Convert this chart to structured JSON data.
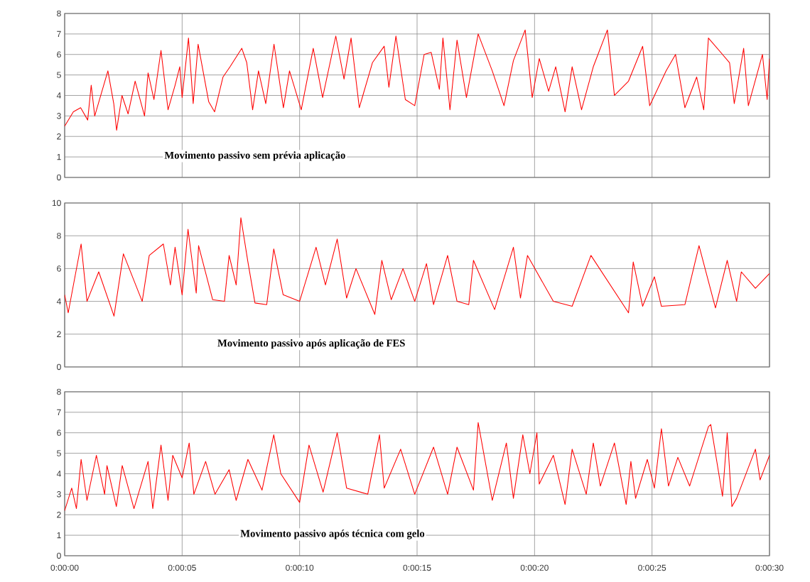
{
  "chart_data": [
    {
      "type": "line",
      "color": "#ff0000",
      "grid": true,
      "tick_labels": "y",
      "xlim": [
        0,
        30
      ],
      "ylim": [
        0,
        8
      ],
      "xticks": [
        {
          "value": 0,
          "label": null
        },
        {
          "value": 5,
          "label": null
        },
        {
          "value": 10,
          "label": null
        },
        {
          "value": 15,
          "label": null
        },
        {
          "value": 20,
          "label": null
        },
        {
          "value": 25,
          "label": null
        },
        {
          "value": 30,
          "label": null
        }
      ],
      "yticks": [
        0,
        1,
        2,
        3,
        4,
        5,
        6,
        7,
        8
      ],
      "annotations": [
        "Movimento passivo sem prévia aplicação"
      ],
      "x": [
        0,
        0.37,
        0.68,
        0.98,
        1.13,
        1.28,
        1.84,
        2.09,
        2.21,
        2.44,
        2.7,
        3.0,
        3.4,
        3.55,
        3.8,
        4.1,
        4.4,
        4.7,
        4.9,
        5.0,
        5.27,
        5.47,
        5.68,
        6.13,
        6.38,
        6.74,
        7.04,
        7.54,
        7.75,
        8.0,
        8.25,
        8.56,
        8.91,
        9.31,
        9.57,
        10.07,
        10.58,
        10.98,
        11.54,
        11.89,
        12.19,
        12.54,
        13.1,
        13.6,
        13.8,
        14.1,
        14.5,
        14.9,
        15.3,
        15.6,
        15.95,
        16.1,
        16.4,
        16.7,
        17.1,
        17.6,
        18.2,
        18.7,
        19.1,
        19.6,
        19.9,
        20.2,
        20.6,
        20.9,
        21.3,
        21.6,
        22.0,
        22.5,
        23.1,
        23.4,
        24.0,
        24.6,
        24.9,
        25.6,
        26.0,
        26.4,
        26.9,
        27.2,
        27.4,
        28.3,
        28.5,
        28.9,
        29.1,
        29.7,
        29.9,
        30
      ],
      "values": [
        2.5,
        3.2,
        3.4,
        2.8,
        4.5,
        3.0,
        5.2,
        3.6,
        2.3,
        4.0,
        3.1,
        4.7,
        3.0,
        5.1,
        3.8,
        6.2,
        3.3,
        4.5,
        5.4,
        3.9,
        6.8,
        3.6,
        6.5,
        3.7,
        3.2,
        4.9,
        5.4,
        6.3,
        5.6,
        3.3,
        5.2,
        3.6,
        6.5,
        3.4,
        5.2,
        3.3,
        6.3,
        3.9,
        6.9,
        4.8,
        6.8,
        3.4,
        5.6,
        6.4,
        4.4,
        6.9,
        3.8,
        3.5,
        6.0,
        6.1,
        4.3,
        6.8,
        3.3,
        6.7,
        3.9,
        7.0,
        5.2,
        3.5,
        5.7,
        7.2,
        3.9,
        5.8,
        4.2,
        5.4,
        3.2,
        5.4,
        3.3,
        5.4,
        7.2,
        4.0,
        4.7,
        6.4,
        3.5,
        5.2,
        6.0,
        3.4,
        4.9,
        3.3,
        6.8,
        5.6,
        3.6,
        6.3,
        3.5,
        6.0,
        3.8,
        5.8
      ]
    },
    {
      "type": "line",
      "color": "#ff0000",
      "grid": true,
      "tick_labels": "y",
      "xlim": [
        0,
        30
      ],
      "ylim": [
        0,
        10
      ],
      "xticks": [
        {
          "value": 0,
          "label": null
        },
        {
          "value": 5,
          "label": null
        },
        {
          "value": 10,
          "label": null
        },
        {
          "value": 15,
          "label": null
        },
        {
          "value": 20,
          "label": null
        },
        {
          "value": 25,
          "label": null
        },
        {
          "value": 30,
          "label": null
        }
      ],
      "yticks": [
        0,
        2,
        4,
        6,
        8,
        10
      ],
      "annotations": [
        "Movimento passivo  após aplicação de FES"
      ],
      "x": [
        0,
        0.15,
        0.7,
        0.95,
        1.45,
        2.1,
        2.5,
        3.3,
        3.6,
        4.2,
        4.5,
        4.7,
        5.0,
        5.25,
        5.6,
        5.7,
        6.3,
        6.8,
        7.0,
        7.3,
        7.5,
        7.8,
        8.1,
        8.6,
        8.9,
        9.3,
        10.0,
        10.7,
        11.1,
        11.6,
        12.0,
        12.4,
        13.2,
        13.5,
        13.9,
        14.4,
        14.9,
        15.4,
        15.7,
        16.3,
        16.7,
        17.2,
        17.4,
        18.3,
        19.1,
        19.4,
        19.7,
        20.8,
        21.6,
        22.4,
        24.0,
        24.2,
        24.6,
        25.1,
        25.4,
        26.4,
        27.0,
        27.7,
        28.2,
        28.6,
        28.8,
        29.4,
        30
      ],
      "values": [
        4.4,
        3.3,
        7.5,
        4.0,
        5.8,
        3.1,
        6.9,
        4.0,
        6.8,
        7.5,
        5.0,
        7.3,
        4.4,
        8.4,
        4.5,
        7.4,
        4.1,
        4.0,
        6.8,
        5.0,
        9.1,
        6.4,
        3.9,
        3.8,
        7.2,
        4.4,
        4.0,
        7.3,
        5.0,
        7.8,
        4.2,
        6.0,
        3.2,
        6.5,
        4.1,
        6.0,
        4.0,
        6.3,
        3.8,
        6.8,
        4.0,
        3.8,
        6.5,
        3.5,
        7.3,
        4.2,
        6.8,
        4.0,
        3.7,
        6.8,
        3.3,
        6.4,
        3.7,
        5.5,
        3.7,
        3.8,
        7.4,
        3.6,
        6.5,
        4.0,
        5.8,
        4.8,
        5.7
      ]
    },
    {
      "type": "line",
      "color": "#ff0000",
      "grid": true,
      "xlim": [
        0,
        30
      ],
      "ylim": [
        0,
        8
      ],
      "xticks": [
        {
          "value": 0,
          "label": "0:00:00"
        },
        {
          "value": 5,
          "label": "0:00:05"
        },
        {
          "value": 10,
          "label": "0:00:10"
        },
        {
          "value": 15,
          "label": "0:00:15"
        },
        {
          "value": 20,
          "label": "0:00:20"
        },
        {
          "value": 25,
          "label": "0:00:25"
        },
        {
          "value": 30,
          "label": "0:00:30"
        }
      ],
      "yticks": [
        0,
        1,
        2,
        3,
        4,
        5,
        6,
        7,
        8
      ],
      "annotations": [
        "Movimento passivo após técnica com gelo"
      ],
      "x": [
        0,
        0.3,
        0.5,
        0.7,
        0.95,
        1.35,
        1.7,
        1.8,
        2.2,
        2.45,
        2.95,
        3.55,
        3.75,
        4.1,
        4.4,
        4.6,
        5.0,
        5.3,
        5.5,
        6.0,
        6.4,
        7.0,
        7.3,
        7.8,
        8.4,
        8.9,
        9.2,
        10.0,
        10.4,
        11.0,
        11.6,
        12.0,
        12.9,
        13.4,
        13.6,
        14.3,
        14.9,
        15.7,
        16.3,
        16.7,
        17.4,
        17.6,
        18.2,
        18.8,
        19.1,
        19.5,
        19.8,
        20.1,
        20.2,
        20.8,
        21.3,
        21.6,
        22.2,
        22.5,
        22.8,
        23.4,
        23.9,
        24.1,
        24.3,
        24.8,
        25.1,
        25.4,
        25.7,
        26.1,
        26.6,
        27.4,
        27.5,
        28.0,
        28.2,
        28.4,
        28.6,
        29.4,
        29.6,
        30
      ],
      "values": [
        2.2,
        3.3,
        2.3,
        4.7,
        2.7,
        4.9,
        3.0,
        4.4,
        2.4,
        4.4,
        2.3,
        4.6,
        2.3,
        5.4,
        2.7,
        4.9,
        3.8,
        5.5,
        3.0,
        4.6,
        3.0,
        4.2,
        2.7,
        4.7,
        3.2,
        5.9,
        4.0,
        2.6,
        5.4,
        3.1,
        6.0,
        3.3,
        3.0,
        5.9,
        3.3,
        5.2,
        3.0,
        5.3,
        3.0,
        5.3,
        3.2,
        6.5,
        2.7,
        5.5,
        2.8,
        5.9,
        4.0,
        6.0,
        3.5,
        4.9,
        2.5,
        5.2,
        3.0,
        5.5,
        3.4,
        5.5,
        2.5,
        4.6,
        2.8,
        4.7,
        3.3,
        6.2,
        3.4,
        4.8,
        3.4,
        6.3,
        6.4,
        2.9,
        6.0,
        2.4,
        2.8,
        5.2,
        3.7,
        4.9
      ]
    }
  ]
}
